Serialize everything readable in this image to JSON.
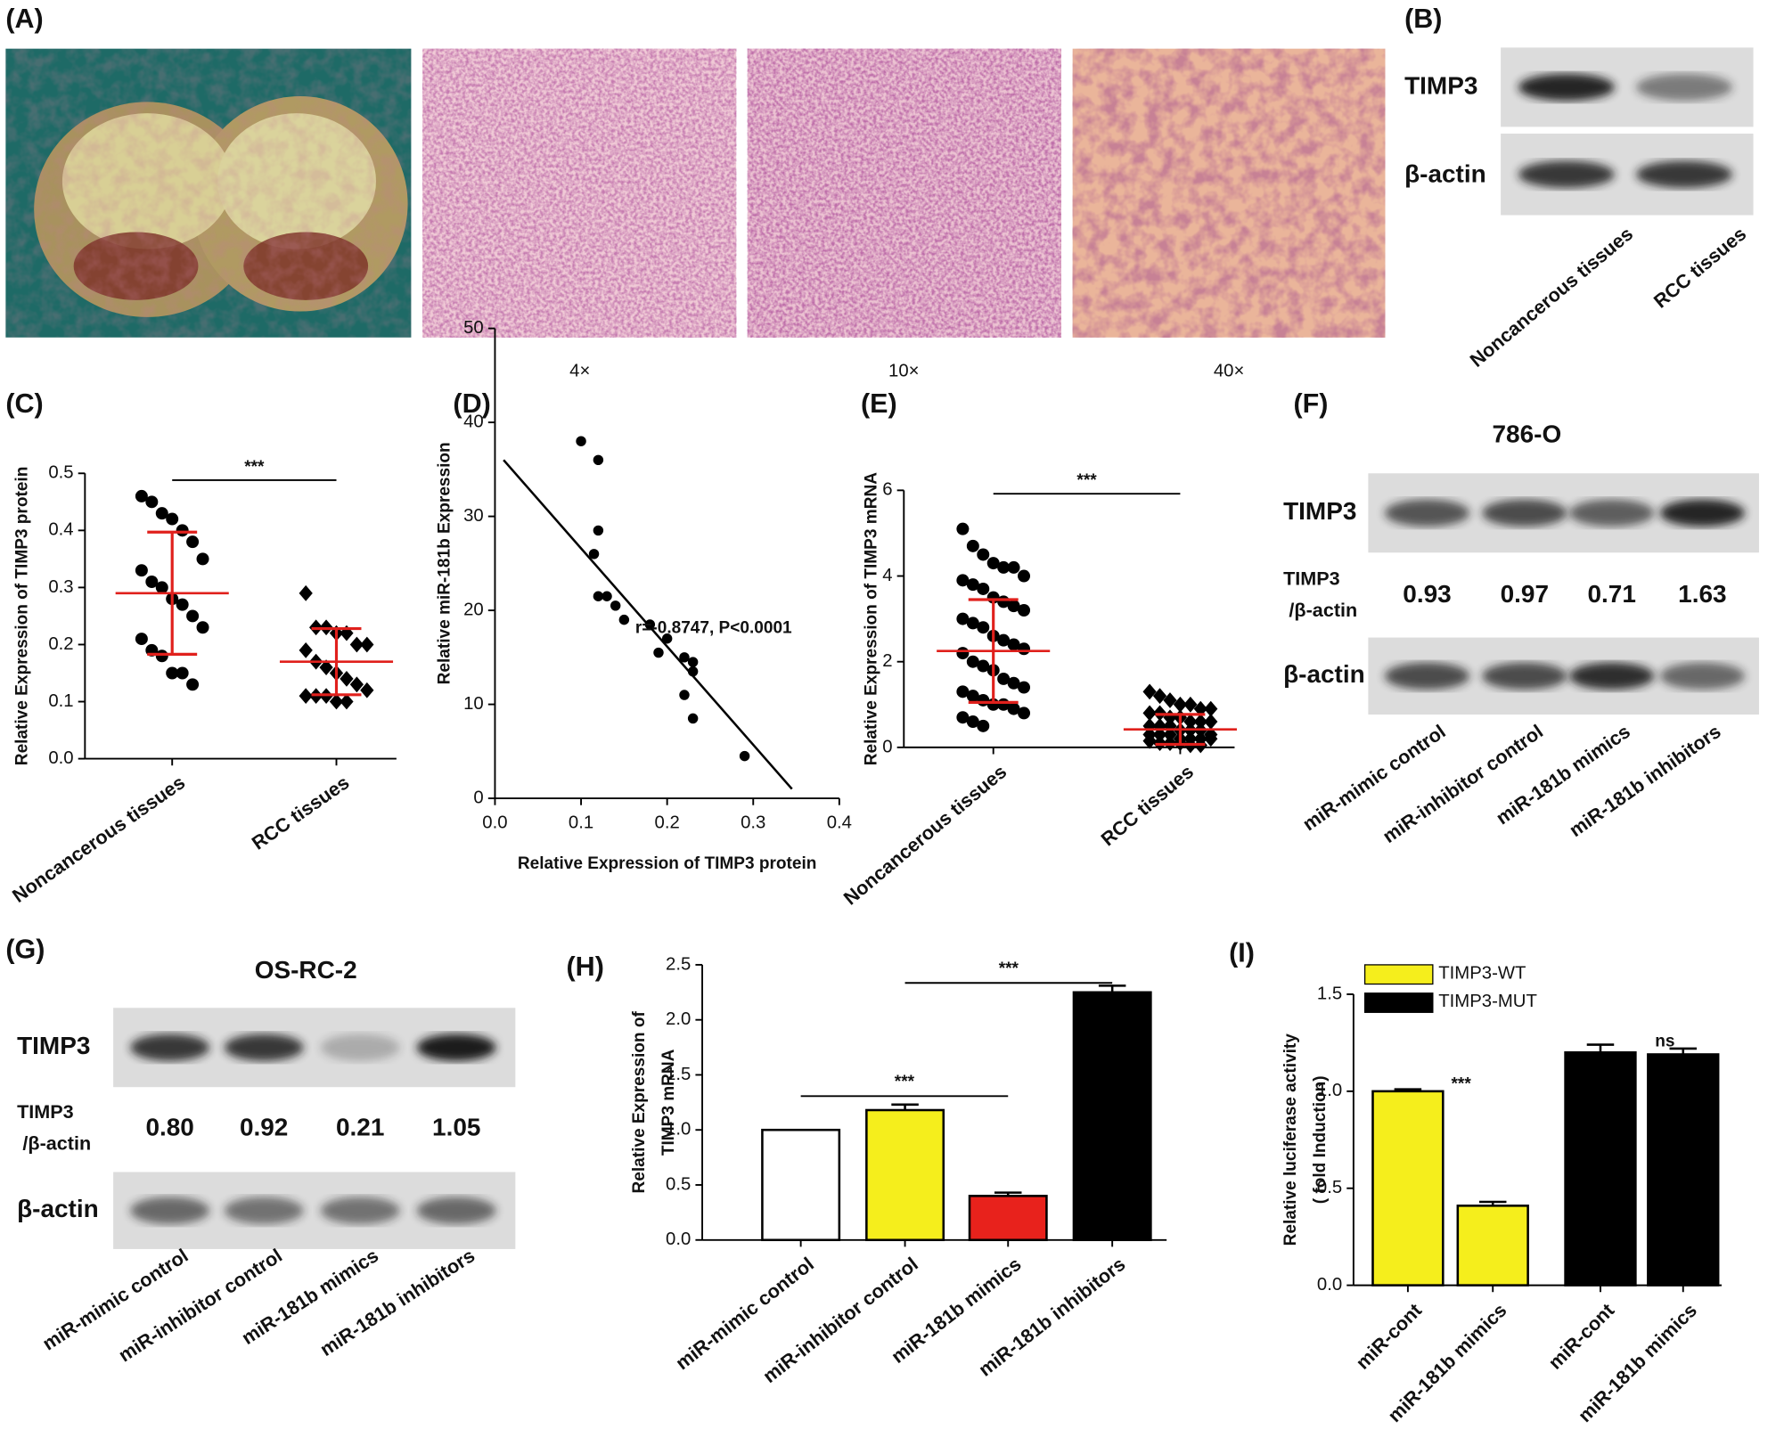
{
  "panel_labels": [
    "(A)",
    "(B)",
    "(C)",
    "(D)",
    "(E)",
    "(F)",
    "(G)",
    "(H)",
    "(I)"
  ],
  "histology": {
    "magnifications": [
      "4×",
      "10×",
      "40×"
    ]
  },
  "blot_B": {
    "rows": [
      "TIMP3",
      "β-actin"
    ],
    "columns": [
      "Noncancerous tissues",
      "RCC tissues"
    ]
  },
  "blot_F": {
    "title": "786-O",
    "rows": [
      "TIMP3",
      "β-actin"
    ],
    "ratio_label": [
      "TIMP3",
      "/β-actin"
    ],
    "ratios": [
      "0.93",
      "0.97",
      "0.71",
      "1.63"
    ],
    "columns": [
      "miR-mimic control",
      "miR-inhibitor control",
      "miR-181b mimics",
      "miR-181b inhibitors"
    ]
  },
  "blot_G": {
    "title": "OS-RC-2",
    "rows": [
      "TIMP3",
      "β-actin"
    ],
    "ratio_label": [
      "TIMP3",
      "/β-actin"
    ],
    "ratios": [
      "0.80",
      "0.92",
      "0.21",
      "1.05"
    ],
    "columns": [
      "miR-mimic control",
      "miR-inhibitor control",
      "miR-181b mimics",
      "miR-181b inhibitors"
    ]
  },
  "chart_data": [
    {
      "type": "dot",
      "y_label": "Relative Expression of TIMP3 protein",
      "categories": [
        "Noncancerous tissues",
        "RCC tissues"
      ],
      "values": [
        [
          0.46,
          0.45,
          0.43,
          0.42,
          0.4,
          0.38,
          0.35,
          0.33,
          0.31,
          0.3,
          0.28,
          0.27,
          0.25,
          0.23,
          0.21,
          0.19,
          0.18,
          0.15,
          0.15,
          0.13
        ],
        [
          0.29,
          0.23,
          0.23,
          0.22,
          0.22,
          0.2,
          0.2,
          0.19,
          0.17,
          0.16,
          0.15,
          0.14,
          0.13,
          0.12,
          0.11,
          0.11,
          0.11,
          0.1,
          0.1
        ]
      ],
      "markers": [
        "circle",
        "diamond"
      ],
      "means": [
        0.29,
        0.17
      ],
      "sd": [
        0.107,
        0.058
      ],
      "color": "#000000",
      "error_color": "#e0201c",
      "annotation": "***",
      "ylim": [
        0,
        0.5
      ],
      "yticks": [
        {
          "value": 0,
          "label": "0.0"
        },
        {
          "value": 0.1,
          "label": "0.1"
        },
        {
          "value": 0.2,
          "label": "0.2"
        },
        {
          "value": 0.3,
          "label": "0.3"
        },
        {
          "value": 0.4,
          "label": "0.4"
        },
        {
          "value": 0.5,
          "label": "0.5"
        }
      ]
    },
    {
      "type": "scatter",
      "x_label": "Relative Expression of TIMP3 protein",
      "y_label": "Relative miR-181b Expression",
      "x": [
        0.1,
        0.12,
        0.12,
        0.115,
        0.12,
        0.13,
        0.14,
        0.15,
        0.18,
        0.19,
        0.2,
        0.22,
        0.23,
        0.23,
        0.22,
        0.23,
        0.29
      ],
      "y": [
        38,
        36,
        28.5,
        26,
        21.5,
        21.5,
        20.5,
        19,
        18.5,
        15.5,
        17,
        15,
        14.5,
        13.5,
        11,
        8.5,
        4.5
      ],
      "fit": {
        "x": [
          0.01,
          0.345
        ],
        "y": [
          36,
          1
        ]
      },
      "color": "#000000",
      "annotation": "r=-0.8747, P<0.0001",
      "xlim": [
        0,
        0.4
      ],
      "xticks": [
        {
          "value": 0,
          "label": "0.0"
        },
        0.1,
        0.2,
        0.3,
        0.4
      ],
      "ylim": [
        0,
        50
      ],
      "yticks": [
        0,
        10,
        20,
        30,
        40,
        50
      ]
    },
    {
      "type": "dot",
      "y_label": "Relative Expression of TIMP3 mRNA",
      "categories": [
        "Noncancerous tissues",
        "RCC tissues"
      ],
      "values": [
        [
          5.1,
          4.7,
          4.5,
          4.3,
          4.2,
          4.2,
          4.0,
          3.9,
          3.8,
          3.7,
          3.5,
          3.4,
          3.3,
          3.2,
          3.0,
          2.9,
          2.8,
          2.6,
          2.5,
          2.4,
          2.3,
          2.2,
          2.0,
          1.9,
          1.8,
          1.6,
          1.5,
          1.4,
          1.3,
          1.2,
          1.1,
          1.0,
          1.0,
          0.9,
          0.8,
          0.7,
          0.6,
          0.5
        ],
        [
          1.3,
          1.2,
          1.1,
          1.0,
          1.0,
          0.9,
          0.9,
          0.8,
          0.8,
          0.7,
          0.7,
          0.6,
          0.6,
          0.6,
          0.5,
          0.5,
          0.5,
          0.4,
          0.4,
          0.4,
          0.3,
          0.3,
          0.3,
          0.3,
          0.2,
          0.2,
          0.2,
          0.2,
          0.15,
          0.1,
          0.1,
          0.1,
          0.05,
          0.05
        ]
      ],
      "markers": [
        "circle",
        "diamond"
      ],
      "means": [
        2.25,
        0.42
      ],
      "sd": [
        1.2,
        0.35
      ],
      "color": "#000000",
      "error_color": "#e0201c",
      "annotation": "***",
      "ylim": [
        0,
        6
      ],
      "yticks": [
        0,
        2,
        4,
        6
      ]
    },
    {
      "type": "bar",
      "y_label": [
        "Relative Expression of",
        "TIMP3 mRNA"
      ],
      "categories": [
        "miR-mimic control",
        "miR-inhibitor control",
        "miR-181b mimics",
        "miR-181b inhibitors"
      ],
      "values": [
        1.0,
        1.18,
        0.4,
        2.25
      ],
      "errors": [
        0,
        0.05,
        0.03,
        0.06
      ],
      "colors": [
        "#ffffff",
        "#f5ee1c",
        "#e8221c",
        "#000000"
      ],
      "annotations": [
        "***",
        "***"
      ],
      "ylim": [
        0,
        2.5
      ],
      "yticks": [
        {
          "value": 0,
          "label": "0.0"
        },
        {
          "value": 0.5,
          "label": "0.5"
        },
        {
          "value": 1,
          "label": "1.0"
        },
        {
          "value": 1.5,
          "label": "1.5"
        },
        {
          "value": 2,
          "label": "2.0"
        },
        {
          "value": 2.5,
          "label": "2.5"
        }
      ]
    },
    {
      "type": "grouped_bar",
      "y_label": [
        "Relative luciferase activity",
        "( fold Induction)"
      ],
      "categories": [
        "miR-cont",
        "miR-181b mimics",
        "miR-cont",
        "miR-181b mimics"
      ],
      "series": [
        {
          "name": "TIMP3-WT",
          "color": "#f5ee1c",
          "values": [
            1.0,
            0.41,
            null,
            null
          ],
          "errors": [
            0.01,
            0.02,
            null,
            null
          ]
        },
        {
          "name": "TIMP3-MUT",
          "color": "#000000",
          "values": [
            null,
            null,
            1.2,
            1.19
          ],
          "errors": [
            null,
            null,
            0.04,
            0.03
          ]
        }
      ],
      "annotations": [
        "***",
        "ns"
      ],
      "ylim": [
        0,
        1.5
      ],
      "yticks": [
        {
          "value": 0,
          "label": "0.0"
        },
        {
          "value": 0.5,
          "label": "0.5"
        },
        {
          "value": 1,
          "label": "1.0"
        },
        {
          "value": 1.5,
          "label": "1.5"
        }
      ]
    }
  ]
}
